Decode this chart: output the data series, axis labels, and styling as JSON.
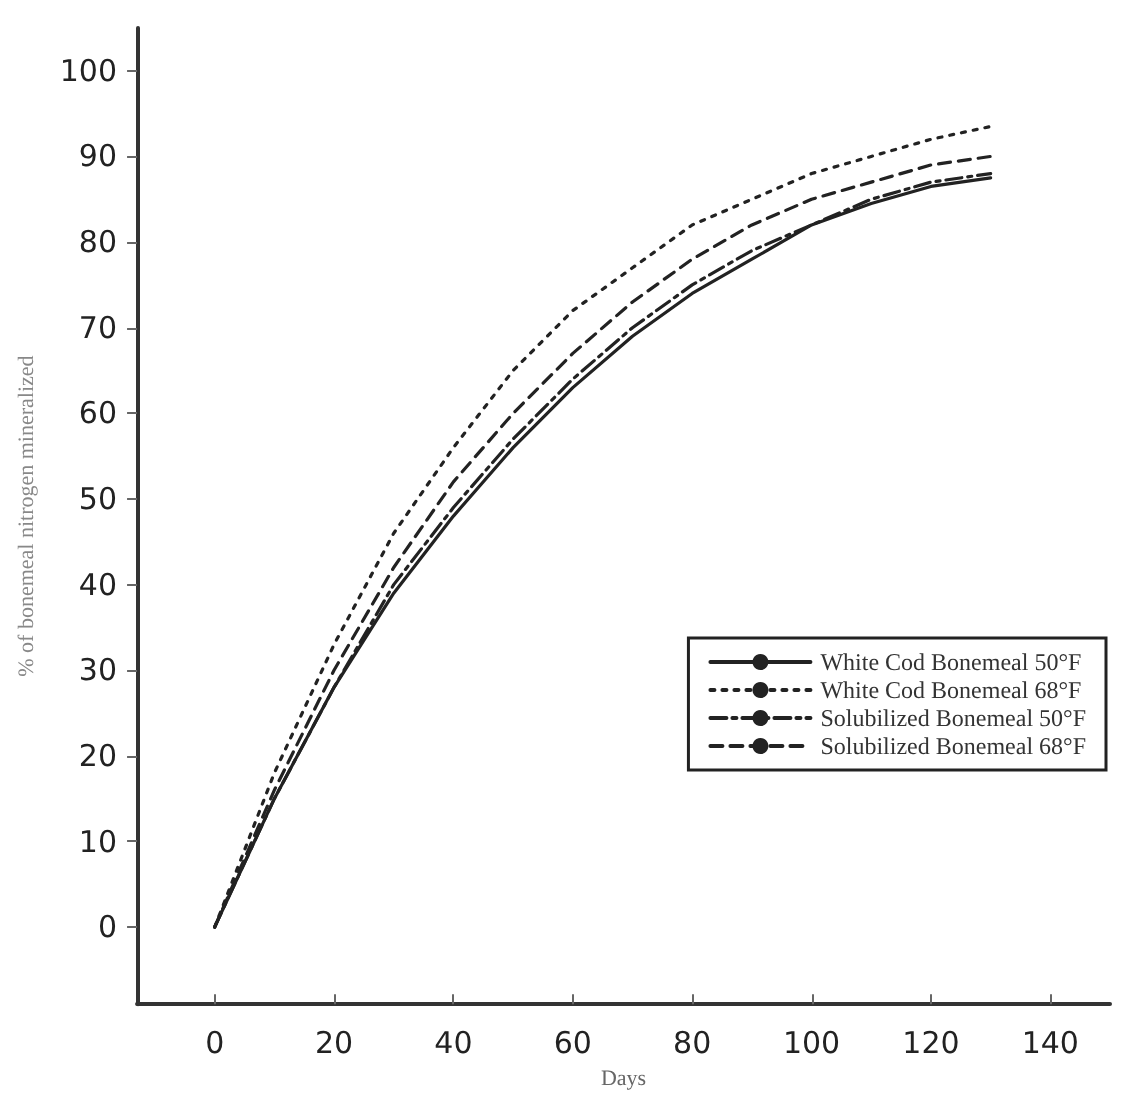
{
  "chart_data": {
    "type": "line",
    "xlabel": "Days",
    "ylabel": "% of bonemeal nitrogen mineralized",
    "x": [
      0,
      10,
      20,
      30,
      40,
      50,
      60,
      70,
      80,
      90,
      100,
      110,
      120,
      130
    ],
    "series": [
      {
        "name": "White Cod Bonemeal 50°F",
        "color": "#222222",
        "line_style": "solid",
        "values": [
          0,
          15,
          28,
          39,
          48,
          56,
          63,
          69,
          74,
          78,
          82,
          84.5,
          86.5,
          87.5
        ]
      },
      {
        "name": "White Cod Bonemeal 68°F",
        "color": "#222222",
        "line_style": "dotted",
        "values": [
          0,
          18,
          33,
          46,
          56,
          65,
          72,
          77,
          82,
          85,
          88,
          90,
          92,
          93.5
        ]
      },
      {
        "name": "Solubilized Bonemeal 50°F",
        "color": "#222222",
        "line_style": "dashdot",
        "values": [
          0,
          15,
          28,
          40,
          49,
          57,
          64,
          70,
          75,
          79,
          82,
          85,
          87,
          88
        ]
      },
      {
        "name": "Solubilized Bonemeal 68°F",
        "color": "#222222",
        "line_style": "dashed",
        "values": [
          0,
          16,
          30,
          42,
          52,
          60,
          67,
          73,
          78,
          82,
          85,
          87,
          89,
          90
        ]
      }
    ],
    "xlim": [
      -13,
      150
    ],
    "ylim": [
      -9,
      105
    ],
    "xticks": [
      0,
      20,
      40,
      60,
      80,
      100,
      120,
      140
    ],
    "yticks": [
      0,
      10,
      20,
      30,
      40,
      50,
      60,
      70,
      80,
      90,
      100
    ],
    "grid": false,
    "legend": "bottom right",
    "marker": "none"
  }
}
